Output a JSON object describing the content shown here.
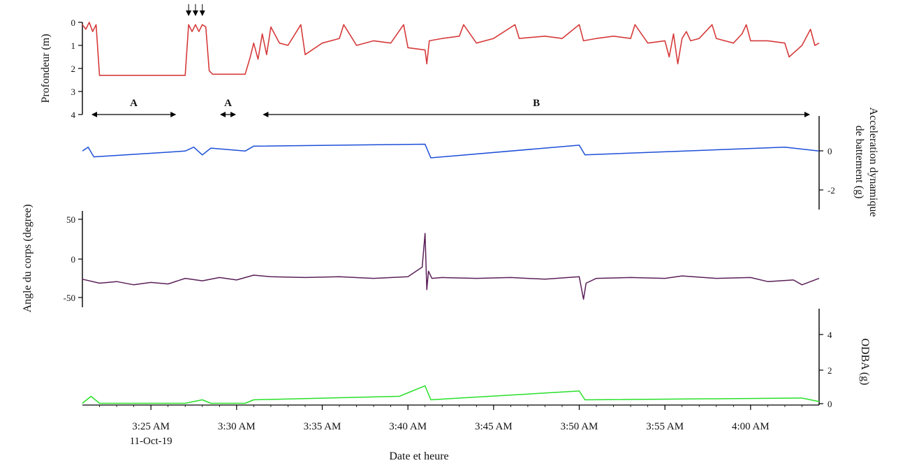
{
  "chart_data": {
    "type": "line",
    "xlabel": "Date et heure",
    "x_ticks": [
      "3:25 AM",
      "3:30 AM",
      "3:35 AM",
      "3:40 AM",
      "3:45 AM",
      "3:50 AM",
      "3:55 AM",
      "4:00 AM"
    ],
    "x_date_sublabel": "11-Oct-19",
    "x_range": [
      "03:21",
      "04:04"
    ],
    "colors": {
      "depth": "#d63a3a",
      "accel": "#1c4fd8",
      "angle": "#5a1f58",
      "odba": "#29e029"
    },
    "panels": [
      {
        "id": "depth",
        "ylabel": "Profondeur (m)",
        "y_ticks": [
          "0",
          "1",
          "2",
          "3",
          "4"
        ],
        "ylim": [
          0,
          4
        ],
        "y_inverted": true,
        "axis_side": "left",
        "phases": [
          {
            "label": "A",
            "start": "03:21",
            "end": "03:27"
          },
          {
            "label": "A",
            "start": "03:28:30",
            "end": "03:30:30"
          },
          {
            "label": "B",
            "start": "03:31",
            "end": "04:04"
          }
        ],
        "series": [
          {
            "x": [
              "03:21:00",
              "03:21:12",
              "03:21:24",
              "03:21:36",
              "03:21:48",
              "03:22:00",
              "03:25:00",
              "03:27:00",
              "03:27:12",
              "03:27:24",
              "03:27:36",
              "03:27:48",
              "03:28:00",
              "03:28:12",
              "03:28:24",
              "03:28:36",
              "03:28:48",
              "03:29:00",
              "03:30:30",
              "03:30:48",
              "03:31:00",
              "03:31:15",
              "03:31:30",
              "03:31:45",
              "03:32:00",
              "03:32:30",
              "03:33:00",
              "03:33:45",
              "03:34:00",
              "03:35:00",
              "03:36:00",
              "03:36:15",
              "03:37:00",
              "03:38:00",
              "03:39:00",
              "03:39:45",
              "03:40:00",
              "03:41:00",
              "03:41:06",
              "03:41:15",
              "03:42:00",
              "03:43:00",
              "03:43:15",
              "03:44:00",
              "03:45:00",
              "03:46:15",
              "03:46:30",
              "03:48:00",
              "03:49:00",
              "03:50:00",
              "03:50:15",
              "03:51:00",
              "03:52:00",
              "03:53:00",
              "03:53:15",
              "03:54:00",
              "03:55:00",
              "03:55:15",
              "03:55:30",
              "03:55:45",
              "03:56:00",
              "03:56:15",
              "03:56:30",
              "03:57:00",
              "03:57:45",
              "03:58:00",
              "03:59:00",
              "03:59:30",
              "03:59:45",
              "04:00:00",
              "04:01:00",
              "04:02:00",
              "04:02:15",
              "04:03:00",
              "04:03:30",
              "04:03:45",
              "04:04:00"
            ],
            "y": [
              0.1,
              0.3,
              0.0,
              0.4,
              0.1,
              2.3,
              2.3,
              2.3,
              0.1,
              0.4,
              0.1,
              0.4,
              0.1,
              0.2,
              2.1,
              2.25,
              2.25,
              2.25,
              2.25,
              1.5,
              0.9,
              1.6,
              0.5,
              1.4,
              0.2,
              0.9,
              1.0,
              0.1,
              1.4,
              0.9,
              0.7,
              0.1,
              1.0,
              0.8,
              0.9,
              0.1,
              1.1,
              1.2,
              1.8,
              0.8,
              0.7,
              0.6,
              0.1,
              0.9,
              0.7,
              0.1,
              0.7,
              0.6,
              0.7,
              0.1,
              0.8,
              0.7,
              0.6,
              0.7,
              0.1,
              0.9,
              0.8,
              1.5,
              0.5,
              1.8,
              0.7,
              0.4,
              0.8,
              0.7,
              0.1,
              0.7,
              0.9,
              0.5,
              0.1,
              0.8,
              0.8,
              0.9,
              1.5,
              1.0,
              0.3,
              1.0,
              0.9
            ]
          }
        ]
      },
      {
        "id": "accel",
        "ylabel": "Acceleration dynamique de battement (g)",
        "y_ticks": [
          "0",
          "-2"
        ],
        "ylim": [
          -3,
          1.8
        ],
        "axis_side": "right",
        "series": [
          {
            "x": [
              "03:21:00",
              "03:21:20",
              "03:21:40",
              "03:27:00",
              "03:27:30",
              "03:28:00",
              "03:28:30",
              "03:30:30",
              "03:31:00",
              "03:41:00",
              "03:41:20",
              "03:50:00",
              "03:50:20",
              "04:02:00",
              "04:04:00"
            ],
            "y": [
              0,
              0.2,
              -0.3,
              0,
              0.2,
              -0.2,
              0.15,
              0,
              0.25,
              0.35,
              -0.35,
              0.3,
              -0.2,
              0.2,
              0
            ]
          }
        ]
      },
      {
        "id": "angle",
        "ylabel": "Angle  du corps (degree)",
        "y_ticks": [
          "50",
          "0",
          "-50"
        ],
        "ylim": [
          -60,
          60
        ],
        "axis_side": "left",
        "series": [
          {
            "x": [
              "03:21:00",
              "03:22:00",
              "03:23:00",
              "03:24:00",
              "03:25:00",
              "03:26:00",
              "03:27:00",
              "03:28:00",
              "03:29:00",
              "03:30:00",
              "03:31:00",
              "03:32:00",
              "03:34:00",
              "03:36:00",
              "03:38:00",
              "03:40:00",
              "03:40:50",
              "03:41:00",
              "03:41:06",
              "03:41:12",
              "03:41:24",
              "03:42:00",
              "03:44:00",
              "03:46:00",
              "03:48:00",
              "03:50:00",
              "03:50:15",
              "03:50:24",
              "03:51:00",
              "03:53:00",
              "03:55:00",
              "03:56:00",
              "03:58:00",
              "04:00:00",
              "04:01:00",
              "04:02:30",
              "04:03:00",
              "04:04:00"
            ],
            "y": [
              -25,
              -30,
              -28,
              -32,
              -29,
              -31,
              -24,
              -27,
              -23,
              -26,
              -20,
              -22,
              -23,
              -22,
              -24,
              -22,
              -10,
              32,
              -38,
              -15,
              -24,
              -23,
              -24,
              -23,
              -25,
              -22,
              -50,
              -30,
              -24,
              -23,
              -24,
              -21,
              -24,
              -23,
              -28,
              -26,
              -32,
              -24
            ]
          }
        ]
      },
      {
        "id": "odba",
        "ylabel": "ODBA (g)",
        "y_ticks": [
          "4",
          "2",
          "0"
        ],
        "ylim": [
          0,
          5.5
        ],
        "axis_side": "right",
        "series": [
          {
            "x": [
              "03:21:00",
              "03:21:30",
              "03:22:00",
              "03:27:00",
              "03:28:00",
              "03:28:30",
              "03:30:30",
              "03:31:00",
              "03:39:30",
              "03:41:00",
              "03:41:20",
              "03:50:00",
              "03:50:20",
              "04:03:00",
              "04:04:00"
            ],
            "y": [
              0.1,
              0.5,
              0.1,
              0.1,
              0.3,
              0.1,
              0.1,
              0.3,
              0.5,
              1.1,
              0.3,
              0.8,
              0.3,
              0.4,
              0.2
            ]
          }
        ]
      }
    ]
  }
}
